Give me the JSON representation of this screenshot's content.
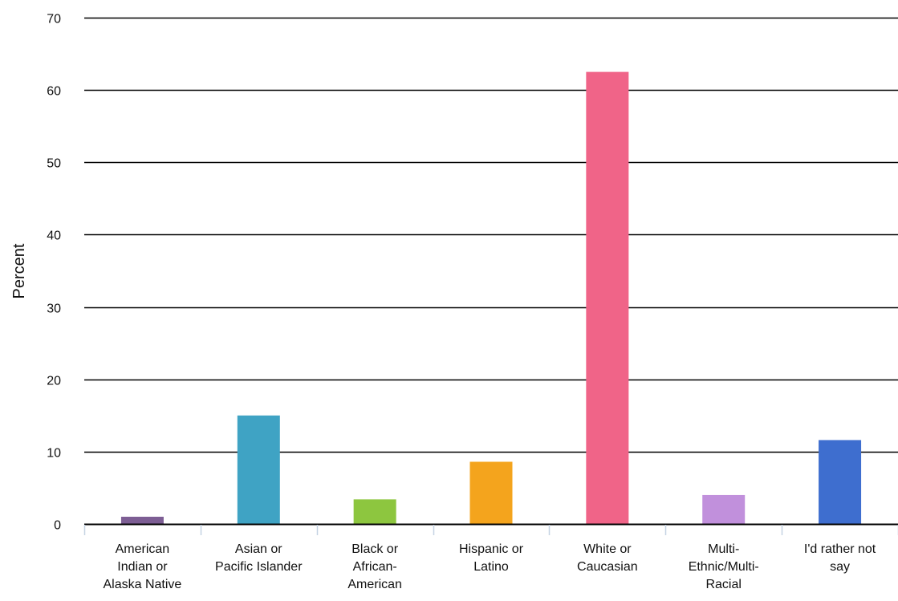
{
  "chart_data": {
    "type": "bar",
    "title": "",
    "xlabel": "",
    "ylabel": "Percent",
    "ylim": [
      0,
      70
    ],
    "yticks": [
      0,
      10,
      20,
      30,
      40,
      50,
      60,
      70
    ],
    "grid": true,
    "legend": "none",
    "categories": [
      [
        "American",
        "Indian or",
        "Alaska Native"
      ],
      [
        "Asian or",
        "Pacific Islander"
      ],
      [
        "Black or",
        "African-",
        "American"
      ],
      [
        "Hispanic or",
        "Latino"
      ],
      [
        "White or",
        "Caucasian"
      ],
      [
        "Multi-",
        "Ethnic/Multi-",
        "Racial"
      ],
      [
        "I'd rather not",
        "say"
      ]
    ],
    "values": [
      1.0,
      15.0,
      3.4,
      8.6,
      62.5,
      4.0,
      11.6
    ],
    "colors": [
      "#7d5e94",
      "#3fa3c4",
      "#8dc63f",
      "#f4a41d",
      "#f06488",
      "#c190dc",
      "#3e6ecf"
    ]
  }
}
